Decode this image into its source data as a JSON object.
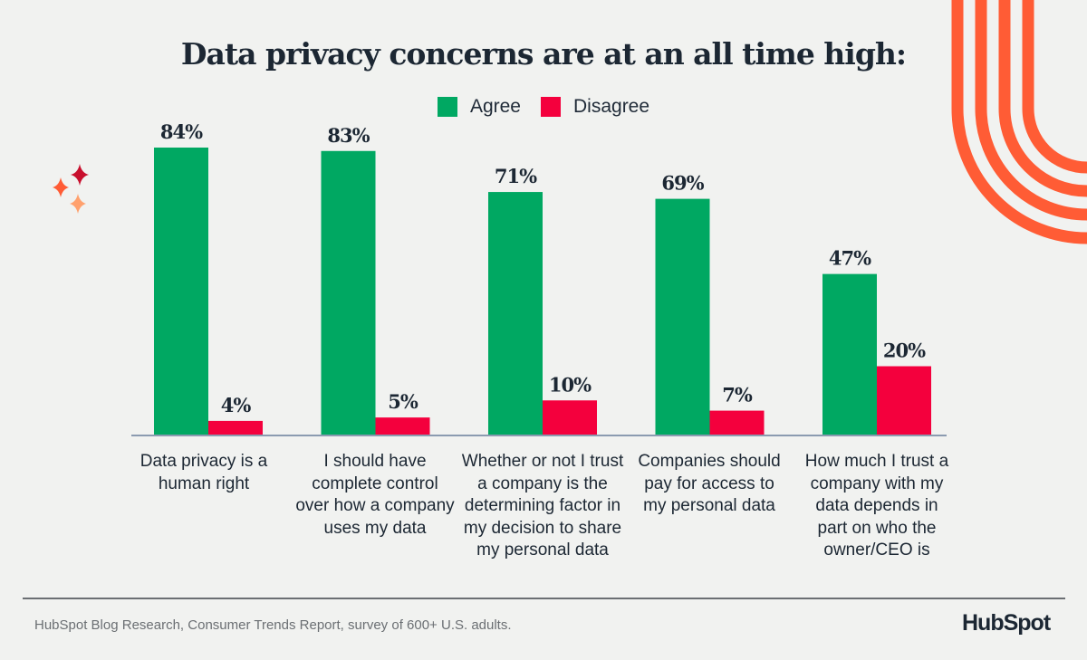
{
  "footer": {
    "source": "HubSpot Blog Research, Consumer Trends Report, survey of 600+ U.S. adults.",
    "logo": "HubSpot"
  },
  "colors": {
    "agree": "#00a862",
    "disagree": "#f4003d",
    "accent": "#ff5c35",
    "background": "#f1f2f0"
  },
  "chart_data": {
    "type": "bar",
    "title": "Data privacy concerns are at an all time high:",
    "categories": [
      "Data privacy is a human right",
      "I should have complete control over how a company uses my data",
      "Whether or not I trust a company is the determining factor in my decision to share my personal data",
      "Companies should pay for access to my personal data",
      "How much I trust a company with my data depends in part on who the owner/CEO is"
    ],
    "series": [
      {
        "name": "Agree",
        "values": [
          84,
          83,
          71,
          69,
          47
        ],
        "labels": [
          "84%",
          "83%",
          "71%",
          "69%",
          "47%"
        ]
      },
      {
        "name": "Disagree",
        "values": [
          4,
          5,
          10,
          7,
          20
        ],
        "labels": [
          "4%",
          "5%",
          "10%",
          "7%",
          "20%"
        ]
      }
    ],
    "ylim": [
      0,
      84
    ],
    "grid": false,
    "legend": "top-center",
    "unit": "%"
  }
}
